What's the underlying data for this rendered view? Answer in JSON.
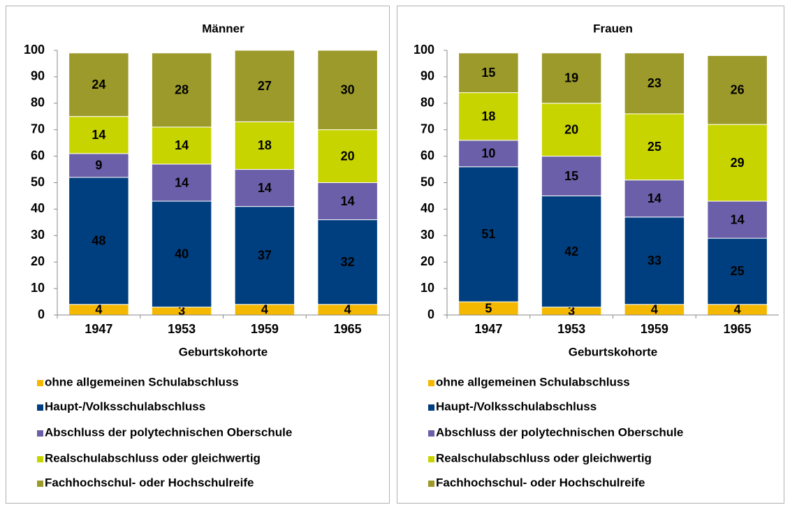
{
  "chart_data": [
    {
      "type": "bar",
      "stacked": true,
      "title": "Männer",
      "x_label": "Geburtskohorte",
      "categories": [
        "1947",
        "1953",
        "1959",
        "1965"
      ],
      "ylim": [
        0,
        100
      ],
      "yticks": [
        0,
        10,
        20,
        30,
        40,
        50,
        60,
        70,
        80,
        90,
        100
      ],
      "grid": false,
      "series": [
        {
          "name": "ohne allgemeinen Schulabschluss",
          "color": "#f5b800",
          "values": [
            4,
            3,
            4,
            4
          ]
        },
        {
          "name": "Haupt-/Volksschulabschluss",
          "color": "#003f7f",
          "values": [
            48,
            40,
            37,
            32
          ]
        },
        {
          "name": "Abschluss der polytechnischen Oberschule",
          "color": "#6a5fa8",
          "values": [
            9,
            14,
            14,
            14
          ]
        },
        {
          "name": "Realschulabschluss oder gleichwertig",
          "color": "#c8d400",
          "values": [
            14,
            14,
            18,
            20
          ]
        },
        {
          "name": "Fachhochschul- oder Hochschulreife",
          "color": "#9c9a2a",
          "values": [
            24,
            28,
            27,
            30
          ]
        }
      ]
    },
    {
      "type": "bar",
      "stacked": true,
      "title": "Frauen",
      "x_label": "Geburtskohorte",
      "categories": [
        "1947",
        "1953",
        "1959",
        "1965"
      ],
      "ylim": [
        0,
        100
      ],
      "yticks": [
        0,
        10,
        20,
        30,
        40,
        50,
        60,
        70,
        80,
        90,
        100
      ],
      "grid": false,
      "series": [
        {
          "name": "ohne allgemeinen Schulabschluss",
          "color": "#f5b800",
          "values": [
            5,
            3,
            4,
            4
          ]
        },
        {
          "name": "Haupt-/Volksschulabschluss",
          "color": "#003f7f",
          "values": [
            51,
            42,
            33,
            25
          ]
        },
        {
          "name": "Abschluss der polytechnischen Oberschule",
          "color": "#6a5fa8",
          "values": [
            10,
            15,
            14,
            14
          ]
        },
        {
          "name": "Realschulabschluss oder gleichwertig",
          "color": "#c8d400",
          "values": [
            18,
            20,
            25,
            29
          ]
        },
        {
          "name": "Fachhochschul- oder Hochschulreife",
          "color": "#9c9a2a",
          "values": [
            15,
            19,
            23,
            26
          ]
        }
      ]
    }
  ]
}
